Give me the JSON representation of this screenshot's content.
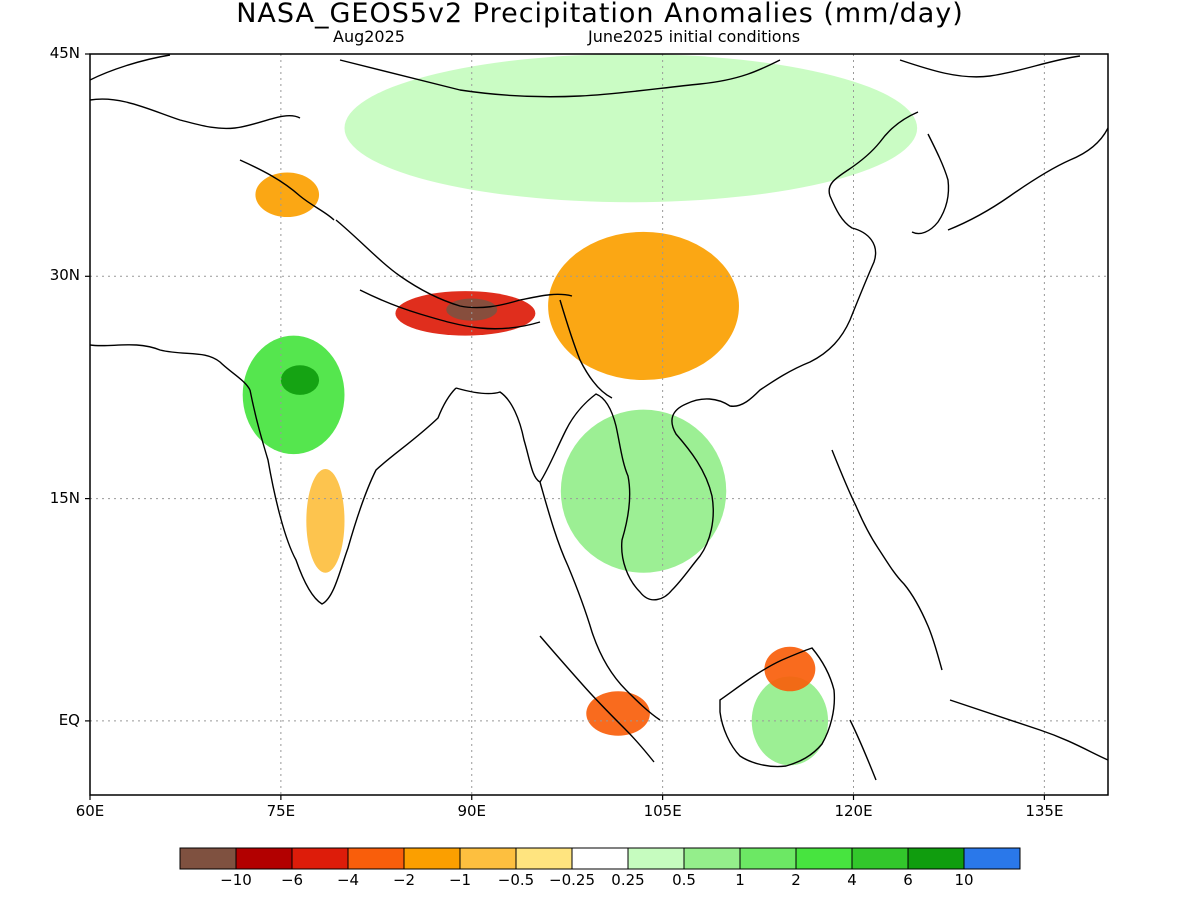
{
  "header": {
    "title": "NASA_GEOS5v2 Precipitation Anomalies (mm/day)",
    "subtitle_left": "Aug2025",
    "subtitle_right": "June2025 initial conditions"
  },
  "map": {
    "lon_range": [
      60,
      140
    ],
    "lat_range": [
      -5,
      45
    ],
    "x_ticks": [
      "60E",
      "75E",
      "90E",
      "105E",
      "120E",
      "135E"
    ],
    "y_ticks": [
      "45N",
      "30N",
      "15N",
      "EQ"
    ],
    "grid": true
  },
  "colorbar": {
    "colors": [
      "#7f5140",
      "#b20000",
      "#dd1c0a",
      "#f95e0b",
      "#fb9f00",
      "#fdbf3f",
      "#ffe47f",
      "#ffffff",
      "#c6fcbf",
      "#94ee8b",
      "#6ce864",
      "#47e43f",
      "#32c72b",
      "#109d0e",
      "#2a78ea"
    ],
    "labels": [
      "−10",
      "−6",
      "−4",
      "−2",
      "−1",
      "−0.5",
      "−0.25",
      "0.25",
      "0.5",
      "1",
      "2",
      "4",
      "6",
      "10"
    ]
  },
  "chart_data": {
    "type": "heatmap",
    "title": "NASA_GEOS5v2 Precipitation Anomalies (mm/day)",
    "subtitle": [
      "Aug2025",
      "June2025 initial conditions"
    ],
    "xlabel": "",
    "ylabel": "",
    "xlim": [
      60,
      140
    ],
    "ylim": [
      -5,
      45
    ],
    "units": "mm/day",
    "levels": [
      -10,
      -6,
      -4,
      -2,
      -1,
      -0.5,
      -0.25,
      0.25,
      0.5,
      1,
      2,
      4,
      6,
      10
    ],
    "regions": [
      {
        "lon": [
          72,
          80
        ],
        "lat": [
          18,
          26
        ],
        "value": 4
      },
      {
        "lon": [
          75,
          78
        ],
        "lat": [
          22,
          24
        ],
        "value": 10
      },
      {
        "lon": [
          84,
          95
        ],
        "lat": [
          26,
          29
        ],
        "value": -4
      },
      {
        "lon": [
          88,
          92
        ],
        "lat": [
          27,
          28.5
        ],
        "value": -10
      },
      {
        "lon": [
          96,
          111
        ],
        "lat": [
          23,
          33
        ],
        "value": -1
      },
      {
        "lon": [
          73,
          78
        ],
        "lat": [
          34,
          37
        ],
        "value": -1
      },
      {
        "lon": [
          97,
          110
        ],
        "lat": [
          10,
          21
        ],
        "value": 1
      },
      {
        "lon": [
          112,
          118
        ],
        "lat": [
          -3,
          3
        ],
        "value": 1
      },
      {
        "lon": [
          113,
          117
        ],
        "lat": [
          2,
          5
        ],
        "value": -2
      },
      {
        "lon": [
          99,
          104
        ],
        "lat": [
          -1,
          2
        ],
        "value": -2
      },
      {
        "lon": [
          77,
          80
        ],
        "lat": [
          10,
          17
        ],
        "value": -0.5
      },
      {
        "lon": [
          80,
          125
        ],
        "lat": [
          35,
          45
        ],
        "value": 0.5
      }
    ]
  }
}
